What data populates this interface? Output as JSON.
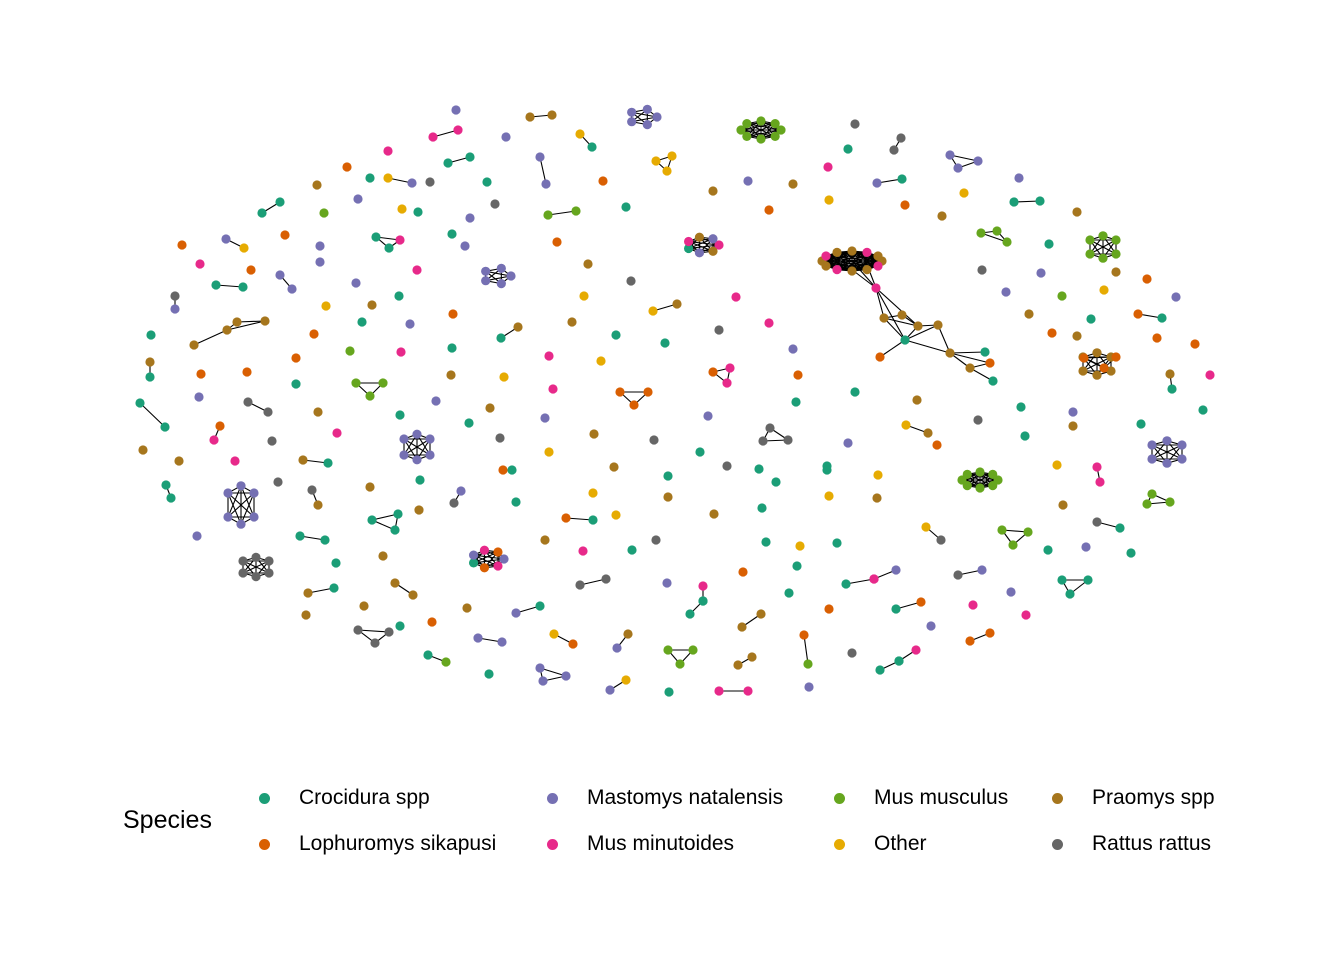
{
  "legend": {
    "title": "Species",
    "items": [
      {
        "label": "Crocidura spp",
        "color": "#1b9e77"
      },
      {
        "label": "Lophuromys sikapusi",
        "color": "#d95f02"
      },
      {
        "label": "Mastomys natalensis",
        "color": "#7570b3"
      },
      {
        "label": "Mus minutoides",
        "color": "#e7298a"
      },
      {
        "label": "Mus musculus",
        "color": "#66a61e"
      },
      {
        "label": "Other",
        "color": "#e6ab02"
      },
      {
        "label": "Praomys spp",
        "color": "#a6761d"
      },
      {
        "label": "Rattus rattus",
        "color": "#666666"
      }
    ]
  }
}
